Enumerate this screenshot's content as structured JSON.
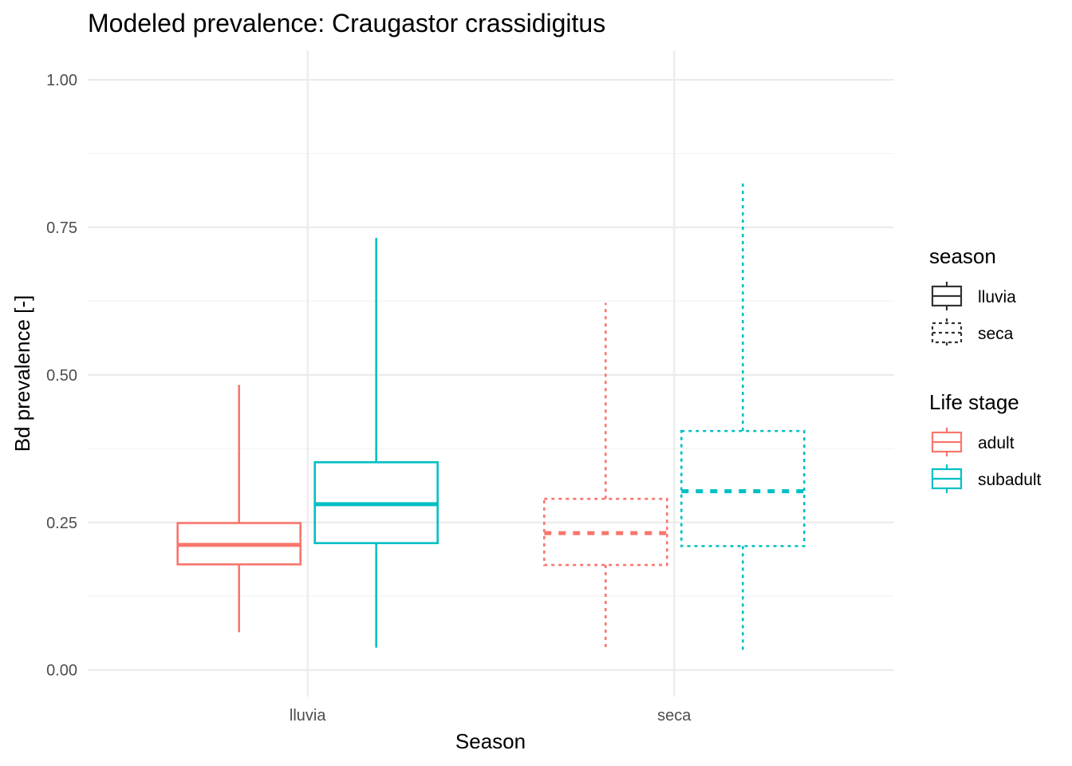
{
  "chart_data": {
    "type": "boxplot",
    "title": "Modeled prevalence: Craugastor crassidigitus",
    "xlabel": "Season",
    "ylabel": "Bd prevalence [-]",
    "categories": [
      "lluvia",
      "seca"
    ],
    "ylim": [
      -0.045,
      1.05
    ],
    "yticks": [
      0.0,
      0.25,
      0.5,
      0.75,
      1.0
    ],
    "ytick_labels": [
      "0.00",
      "0.25",
      "0.50",
      "0.75",
      "1.00"
    ],
    "grid": true,
    "series": [
      {
        "name": "adult",
        "color": "#F8766D",
        "boxes": [
          {
            "category": "lluvia",
            "linetype": "solid",
            "min": 0.064,
            "q1": 0.179,
            "median": 0.212,
            "q3": 0.249,
            "max": 0.483
          },
          {
            "category": "seca",
            "linetype": "dashed",
            "min": 0.033,
            "q1": 0.178,
            "median": 0.232,
            "q3": 0.29,
            "max": 0.622
          }
        ]
      },
      {
        "name": "subadult",
        "color": "#00BFC4",
        "boxes": [
          {
            "category": "lluvia",
            "linetype": "solid",
            "min": 0.038,
            "q1": 0.215,
            "median": 0.281,
            "q3": 0.352,
            "max": 0.732
          },
          {
            "category": "seca",
            "linetype": "dashed",
            "min": 0.033,
            "q1": 0.21,
            "median": 0.303,
            "q3": 0.405,
            "max": 0.83
          }
        ]
      }
    ],
    "legends": [
      {
        "title": "season",
        "placement": "right",
        "entries": [
          {
            "label": "lluvia",
            "linetype": "solid",
            "color": "#333333"
          },
          {
            "label": "seca",
            "linetype": "dashed",
            "color": "#333333"
          }
        ]
      },
      {
        "title": "Life stage",
        "placement": "right",
        "entries": [
          {
            "label": "adult",
            "linetype": "solid",
            "color": "#F8766D"
          },
          {
            "label": "subadult",
            "linetype": "solid",
            "color": "#00BFC4"
          }
        ]
      }
    ]
  }
}
